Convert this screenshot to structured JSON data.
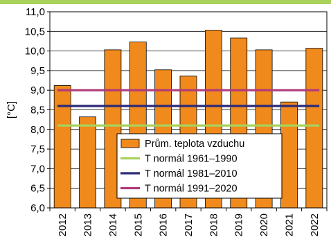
{
  "chart_data": {
    "type": "bar",
    "categories": [
      "2012",
      "2013",
      "2014",
      "2015",
      "2016",
      "2017",
      "2018",
      "2019",
      "2020",
      "2021",
      "2022"
    ],
    "series": [
      {
        "name": "Prům. teplota vzduchu",
        "type": "bar",
        "color": "#f08a1c",
        "values": [
          9.12,
          8.32,
          10.03,
          10.23,
          9.52,
          9.36,
          10.53,
          10.33,
          10.03,
          8.7,
          10.07
        ]
      }
    ],
    "reference_lines": [
      {
        "name": "T normál 1961–1990",
        "value": 8.1,
        "color": "#a9d25a"
      },
      {
        "name": "T normál 1981–2010",
        "value": 8.6,
        "color": "#2a2a7a"
      },
      {
        "name": "T normál 1991–2020",
        "value": 9.0,
        "color": "#b03a7a"
      }
    ],
    "ylabel": "[°C]",
    "ylim": [
      6.0,
      11.0
    ],
    "yticks": [
      "6,0",
      "6,5",
      "7,0",
      "7,5",
      "8,0",
      "8,5",
      "9,0",
      "9,5",
      "10,0",
      "10,5",
      "11,0"
    ],
    "grid": true,
    "legend_position": "bottom-center",
    "accent_bar_color": "#a9d25a"
  }
}
